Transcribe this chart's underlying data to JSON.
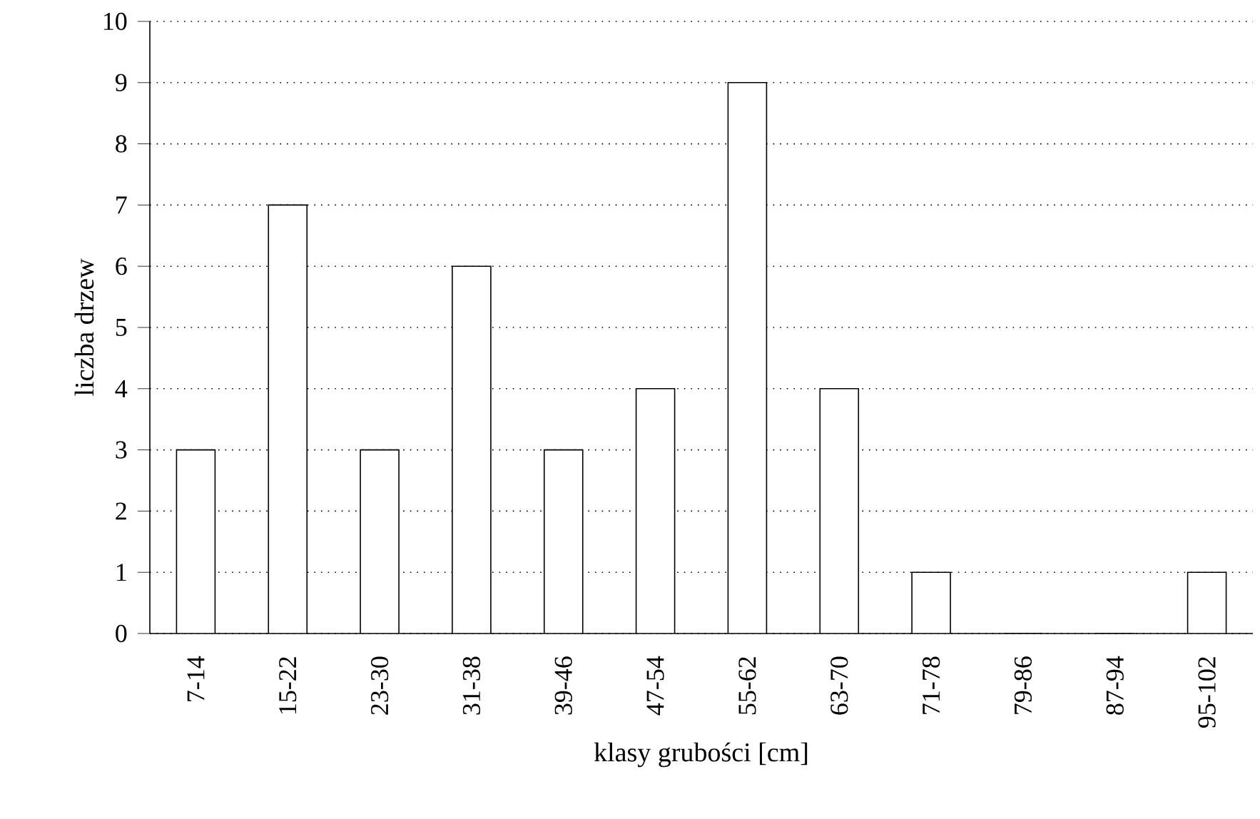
{
  "chart_data": {
    "type": "bar",
    "xlabel": "klasy grubości [cm]",
    "ylabel": "liczba drzew",
    "categories": [
      "7-14",
      "15-22",
      "23-30",
      "31-38",
      "39-46",
      "47-54",
      "55-62",
      "63-70",
      "71-78",
      "79-86",
      "87-94",
      "95-102"
    ],
    "values": [
      3,
      7,
      3,
      6,
      3,
      4,
      9,
      4,
      1,
      0,
      0,
      1
    ],
    "color": "#ffffff",
    "ylim": [
      0,
      10
    ],
    "yticks": [
      0,
      1,
      2,
      3,
      4,
      5,
      6,
      7,
      8,
      9,
      10
    ],
    "grid": "y",
    "line_style": "dotted"
  }
}
